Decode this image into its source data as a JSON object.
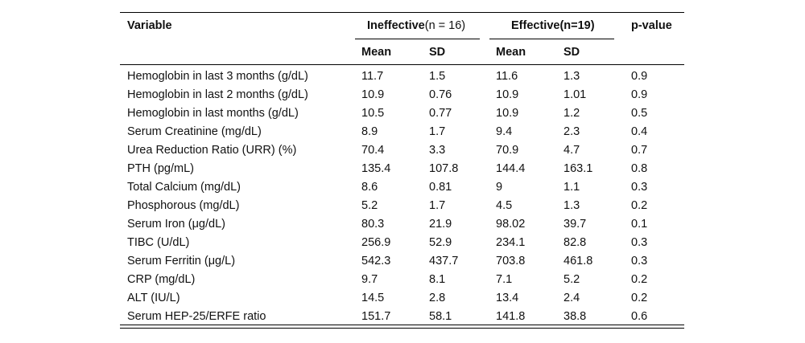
{
  "table": {
    "headers": {
      "variable": "Variable",
      "ineffective_label": "Ineffective",
      "ineffective_n": "(n = 16)",
      "effective_label": "Effective",
      "effective_n": "(n=19)",
      "pvalue": "p-value",
      "mean": "Mean",
      "sd": "SD"
    },
    "rows": [
      {
        "variable": "Hemoglobin in last 3 months (g/dL)",
        "ineff_mean": "11.7",
        "ineff_sd": "1.5",
        "eff_mean": "11.6",
        "eff_sd": "1.3",
        "p": "0.9"
      },
      {
        "variable": "Hemoglobin in last 2 months (g/dL)",
        "ineff_mean": "10.9",
        "ineff_sd": "0.76",
        "eff_mean": "10.9",
        "eff_sd": "1.01",
        "p": "0.9"
      },
      {
        "variable": "Hemoglobin in last months (g/dL)",
        "ineff_mean": "10.5",
        "ineff_sd": "0.77",
        "eff_mean": "10.9",
        "eff_sd": "1.2",
        "p": "0.5"
      },
      {
        "variable": "Serum Creatinine (mg/dL)",
        "ineff_mean": "8.9",
        "ineff_sd": "1.7",
        "eff_mean": "9.4",
        "eff_sd": "2.3",
        "p": "0.4"
      },
      {
        "variable": "Urea Reduction Ratio (URR) (%)",
        "ineff_mean": "70.4",
        "ineff_sd": "3.3",
        "eff_mean": "70.9",
        "eff_sd": "4.7",
        "p": "0.7"
      },
      {
        "variable": "PTH (pg/mL)",
        "ineff_mean": "135.4",
        "ineff_sd": "107.8",
        "eff_mean": "144.4",
        "eff_sd": "163.1",
        "p": "0.8"
      },
      {
        "variable": "Total Calcium (mg/dL)",
        "ineff_mean": "8.6",
        "ineff_sd": "0.81",
        "eff_mean": "9",
        "eff_sd": "1.1",
        "p": "0.3"
      },
      {
        "variable": "Phosphorous (mg/dL)",
        "ineff_mean": "5.2",
        "ineff_sd": "1.7",
        "eff_mean": "4.5",
        "eff_sd": "1.3",
        "p": "0.2"
      },
      {
        "variable": "Serum Iron (μg/dL)",
        "ineff_mean": "80.3",
        "ineff_sd": "21.9",
        "eff_mean": "98.02",
        "eff_sd": "39.7",
        "p": "0.1"
      },
      {
        "variable": "TIBC (U/dL)",
        "ineff_mean": "256.9",
        "ineff_sd": "52.9",
        "eff_mean": "234.1",
        "eff_sd": "82.8",
        "p": "0.3"
      },
      {
        "variable": "Serum Ferritin (μg/L)",
        "ineff_mean": "542.3",
        "ineff_sd": "437.7",
        "eff_mean": "703.8",
        "eff_sd": "461.8",
        "p": "0.3"
      },
      {
        "variable": "CRP (mg/dL)",
        "ineff_mean": "9.7",
        "ineff_sd": "8.1",
        "eff_mean": "7.1",
        "eff_sd": "5.2",
        "p": "0.2"
      },
      {
        "variable": "ALT (IU/L)",
        "ineff_mean": "14.5",
        "ineff_sd": "2.8",
        "eff_mean": "13.4",
        "eff_sd": "2.4",
        "p": "0.2"
      },
      {
        "variable": "Serum HEP-25/ERFE ratio",
        "ineff_mean": "151.7",
        "ineff_sd": "58.1",
        "eff_mean": "141.8",
        "eff_sd": "38.8",
        "p": "0.6"
      }
    ]
  }
}
